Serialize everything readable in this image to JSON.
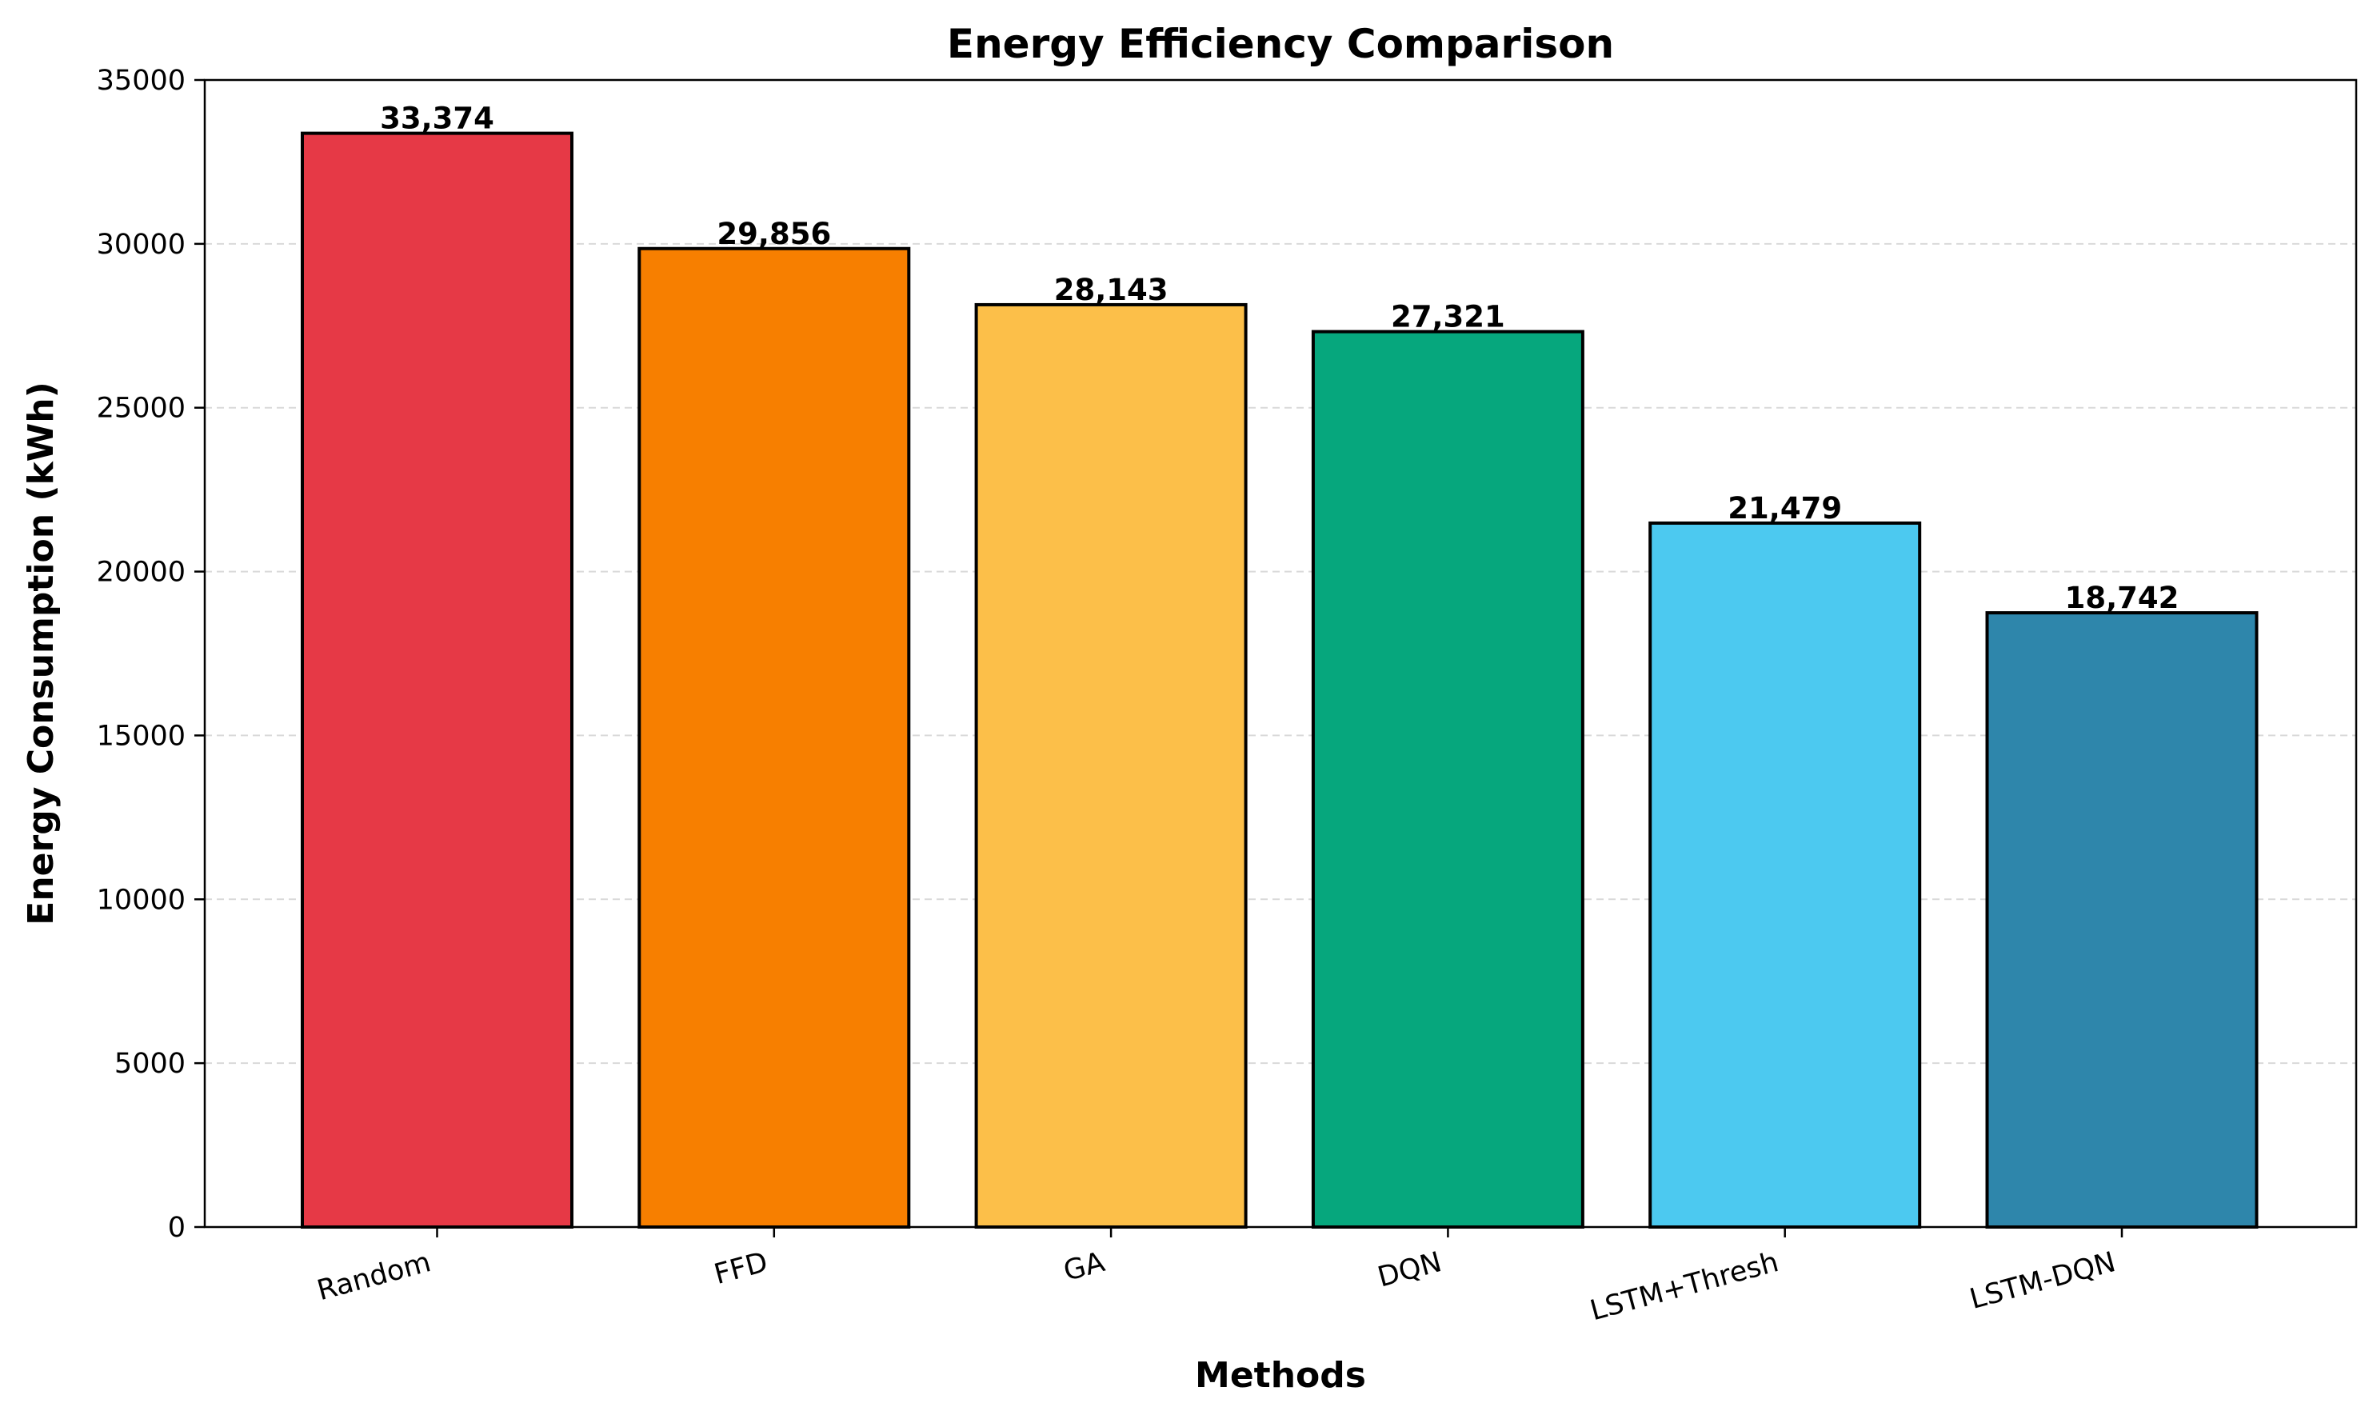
{
  "chart_data": {
    "type": "bar",
    "title": "Energy Efficiency Comparison",
    "xlabel": "Methods",
    "ylabel": "Energy Consumption (kWh)",
    "categories": [
      "Random",
      "FFD",
      "GA",
      "DQN",
      "LSTM+Thresh",
      "LSTM-DQN"
    ],
    "values": [
      33374,
      29856,
      28143,
      27321,
      21479,
      18742
    ],
    "value_labels": [
      "33,374",
      "29,856",
      "28,143",
      "27,321",
      "21,479",
      "18,742"
    ],
    "colors": [
      "#e63946",
      "#f77f00",
      "#fcbf49",
      "#06a77d",
      "#4cc9f0",
      "#2e86ab"
    ],
    "ylim": [
      0,
      35000
    ],
    "yticks": [
      0,
      5000,
      10000,
      15000,
      20000,
      25000,
      30000,
      35000
    ],
    "ytick_labels": [
      "0",
      "5000",
      "10000",
      "15000",
      "20000",
      "25000",
      "30000",
      "35000"
    ],
    "grid": "y-dashed",
    "legend": "none"
  }
}
